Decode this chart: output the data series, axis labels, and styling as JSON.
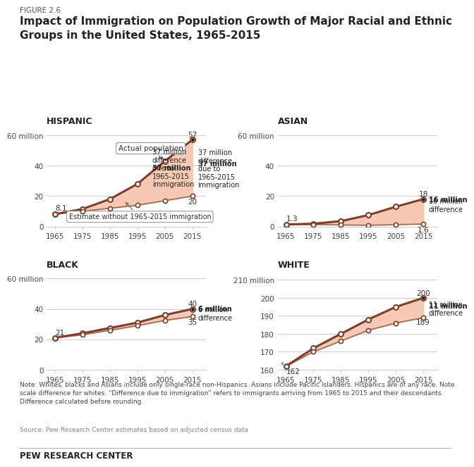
{
  "figure_label": "FIGURE 2.6",
  "title": "Impact of Immigration on Population Growth of Major Racial and Ethnic\nGroups in the United States, 1965-2015",
  "years": [
    1965,
    1975,
    1985,
    1995,
    2005,
    2015
  ],
  "hispanic": {
    "title": "HISPANIC",
    "actual": [
      8.1,
      11.5,
      18.0,
      28.0,
      43.0,
      57.0
    ],
    "without": [
      8.1,
      10.0,
      12.0,
      14.0,
      17.0,
      20.0
    ],
    "ylim": [
      0,
      65
    ],
    "yticks": [
      0,
      20,
      40,
      60
    ],
    "ytick_labels": [
      "0",
      "20",
      "40",
      "60 million"
    ],
    "start_label": "8.1",
    "end_actual": "57",
    "end_without": "20",
    "diff_label": "37 million\ndifference\ndue to\n1965-2015\nimmigration",
    "annotation_actual": "Actual population",
    "annotation_without": "Estimate without 1965-2015 immigration"
  },
  "asian": {
    "title": "ASIAN",
    "actual": [
      1.3,
      1.8,
      3.5,
      7.5,
      13.0,
      18.0
    ],
    "without": [
      1.3,
      1.3,
      1.0,
      0.8,
      1.2,
      1.6
    ],
    "ylim": [
      0,
      65
    ],
    "yticks": [
      0,
      20,
      40,
      60
    ],
    "ytick_labels": [
      "0",
      "20",
      "40",
      "60 million"
    ],
    "start_label": "1.3",
    "end_actual": "18",
    "end_without": "1.6",
    "diff_label": "16 million\ndifference"
  },
  "black": {
    "title": "BLACK",
    "actual": [
      21.0,
      24.0,
      27.5,
      31.0,
      36.0,
      40.0
    ],
    "without": [
      21.0,
      23.0,
      26.0,
      29.0,
      32.5,
      35.0
    ],
    "ylim": [
      0,
      65
    ],
    "yticks": [
      0,
      20,
      40,
      60
    ],
    "ytick_labels": [
      "0",
      "20",
      "40",
      "60 million"
    ],
    "start_label": "21",
    "end_actual": "40",
    "end_without": "35",
    "diff_label": "6 million\ndifference"
  },
  "white": {
    "title": "WHITE",
    "actual": [
      162.0,
      172.0,
      180.0,
      188.0,
      195.0,
      200.0
    ],
    "without": [
      162.0,
      170.0,
      176.0,
      182.0,
      186.0,
      189.0
    ],
    "ylim": [
      160,
      215
    ],
    "yticks": [
      160,
      170,
      180,
      190,
      200,
      210
    ],
    "ytick_labels": [
      "160",
      "170",
      "180",
      "190",
      "200",
      "210 million"
    ],
    "start_label": "162",
    "end_actual": "200",
    "end_without": "189",
    "diff_label": "11 million\ndifference",
    "break_axis": true
  },
  "line_color": "#7B3F2A",
  "fill_color": "#F5C9B3",
  "dot_color": "#FFFFFF",
  "dot_edge_color": "#7B3F2A",
  "note": "Note: Whites, blacks and Asians include only single-race non-Hispanics. Asians include Pacific Islanders. Hispanics are of any race. Note\nscale difference for whites. “Difference due to immigration” refers to immigrants arriving from 1965 to 2015 and their descendants.\nDifference calculated before rounding.",
  "source": "Source: Pew Research Center estimates based on adjusted census data",
  "brand": "PEW RESEARCH CENTER",
  "bg_color": "#FFFFFF",
  "grid_color": "#CCCCCC"
}
